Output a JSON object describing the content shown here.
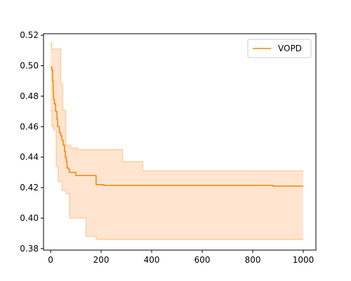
{
  "chart_data": {
    "type": "line",
    "title": "",
    "xlabel": "",
    "ylabel": "",
    "xlim": [
      -28,
      1050
    ],
    "ylim": [
      0.379,
      0.521
    ],
    "xticks": [
      0,
      200,
      400,
      600,
      800,
      1000
    ],
    "yticks": [
      0.38,
      0.4,
      0.42,
      0.44,
      0.46,
      0.48,
      0.5,
      0.52
    ],
    "ytick_labels": [
      "0.38",
      "0.40",
      "0.42",
      "0.44",
      "0.46",
      "0.48",
      "0.50",
      "0.52"
    ],
    "grid": false,
    "legend": {
      "placement": "top-right",
      "entries": [
        "VOPD"
      ]
    },
    "series": [
      {
        "name": "VOPD",
        "color": "#ff7f0e",
        "step": "post",
        "mean": [
          [
            0,
            0.499
          ],
          [
            5,
            0.497
          ],
          [
            8,
            0.49
          ],
          [
            10,
            0.483
          ],
          [
            12,
            0.478
          ],
          [
            15,
            0.475
          ],
          [
            20,
            0.47
          ],
          [
            25,
            0.465
          ],
          [
            28,
            0.46
          ],
          [
            35,
            0.456
          ],
          [
            40,
            0.454
          ],
          [
            45,
            0.451
          ],
          [
            50,
            0.448
          ],
          [
            55,
            0.444
          ],
          [
            58,
            0.44
          ],
          [
            62,
            0.437
          ],
          [
            65,
            0.433
          ],
          [
            70,
            0.432
          ],
          [
            75,
            0.43
          ],
          [
            100,
            0.428
          ],
          [
            180,
            0.422
          ],
          [
            210,
            0.4215
          ],
          [
            880,
            0.421
          ],
          [
            1000,
            0.421
          ]
        ],
        "upper": [
          [
            0,
            0.515
          ],
          [
            5,
            0.511
          ],
          [
            40,
            0.488
          ],
          [
            48,
            0.471
          ],
          [
            60,
            0.448
          ],
          [
            80,
            0.446
          ],
          [
            110,
            0.445
          ],
          [
            285,
            0.437
          ],
          [
            365,
            0.431
          ],
          [
            1000,
            0.431
          ]
        ],
        "lower": [
          [
            0,
            0.47
          ],
          [
            5,
            0.46
          ],
          [
            12,
            0.458
          ],
          [
            22,
            0.434
          ],
          [
            30,
            0.424
          ],
          [
            45,
            0.418
          ],
          [
            62,
            0.416
          ],
          [
            75,
            0.4
          ],
          [
            140,
            0.388
          ],
          [
            180,
            0.386
          ],
          [
            1000,
            0.386
          ]
        ]
      }
    ]
  }
}
